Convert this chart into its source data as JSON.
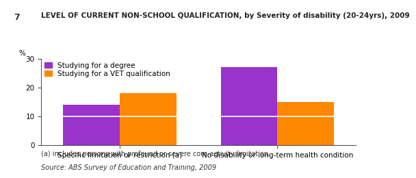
{
  "title": "LEVEL OF CURRENT NON-SCHOOL QUALIFICATION, by Severity of disability (20-24yrs), 2009",
  "chart_number": "7",
  "ylabel": "%",
  "ylim": [
    0,
    30
  ],
  "yticks": [
    0,
    10,
    20,
    30
  ],
  "categories": [
    "Specific limitation or restriction (a)",
    "No disability or long-term health condition"
  ],
  "series": {
    "degree": {
      "label": "Studying for a degree",
      "values": [
        14,
        27
      ],
      "color": "#9933CC"
    },
    "vet": {
      "label": "Studying for a VET qualification",
      "values": [
        18,
        15
      ],
      "color": "#FF8800"
    }
  },
  "hline_y": 10,
  "hline_color": "#FFFFFF",
  "footnote1": "(a) includes persons with profound or severe core-activity limitation.",
  "footnote2": "Source: ABS Survey of Education and Training, 2009",
  "bar_width": 0.18,
  "group_centers": [
    0.25,
    0.75
  ],
  "xlim": [
    0,
    1.0
  ],
  "background_color": "#FFFFFF",
  "title_fontsize": 7.5,
  "legend_fontsize": 7.5,
  "tick_fontsize": 7.5,
  "footnote_fontsize": 7.0,
  "axis_color": "#555555"
}
